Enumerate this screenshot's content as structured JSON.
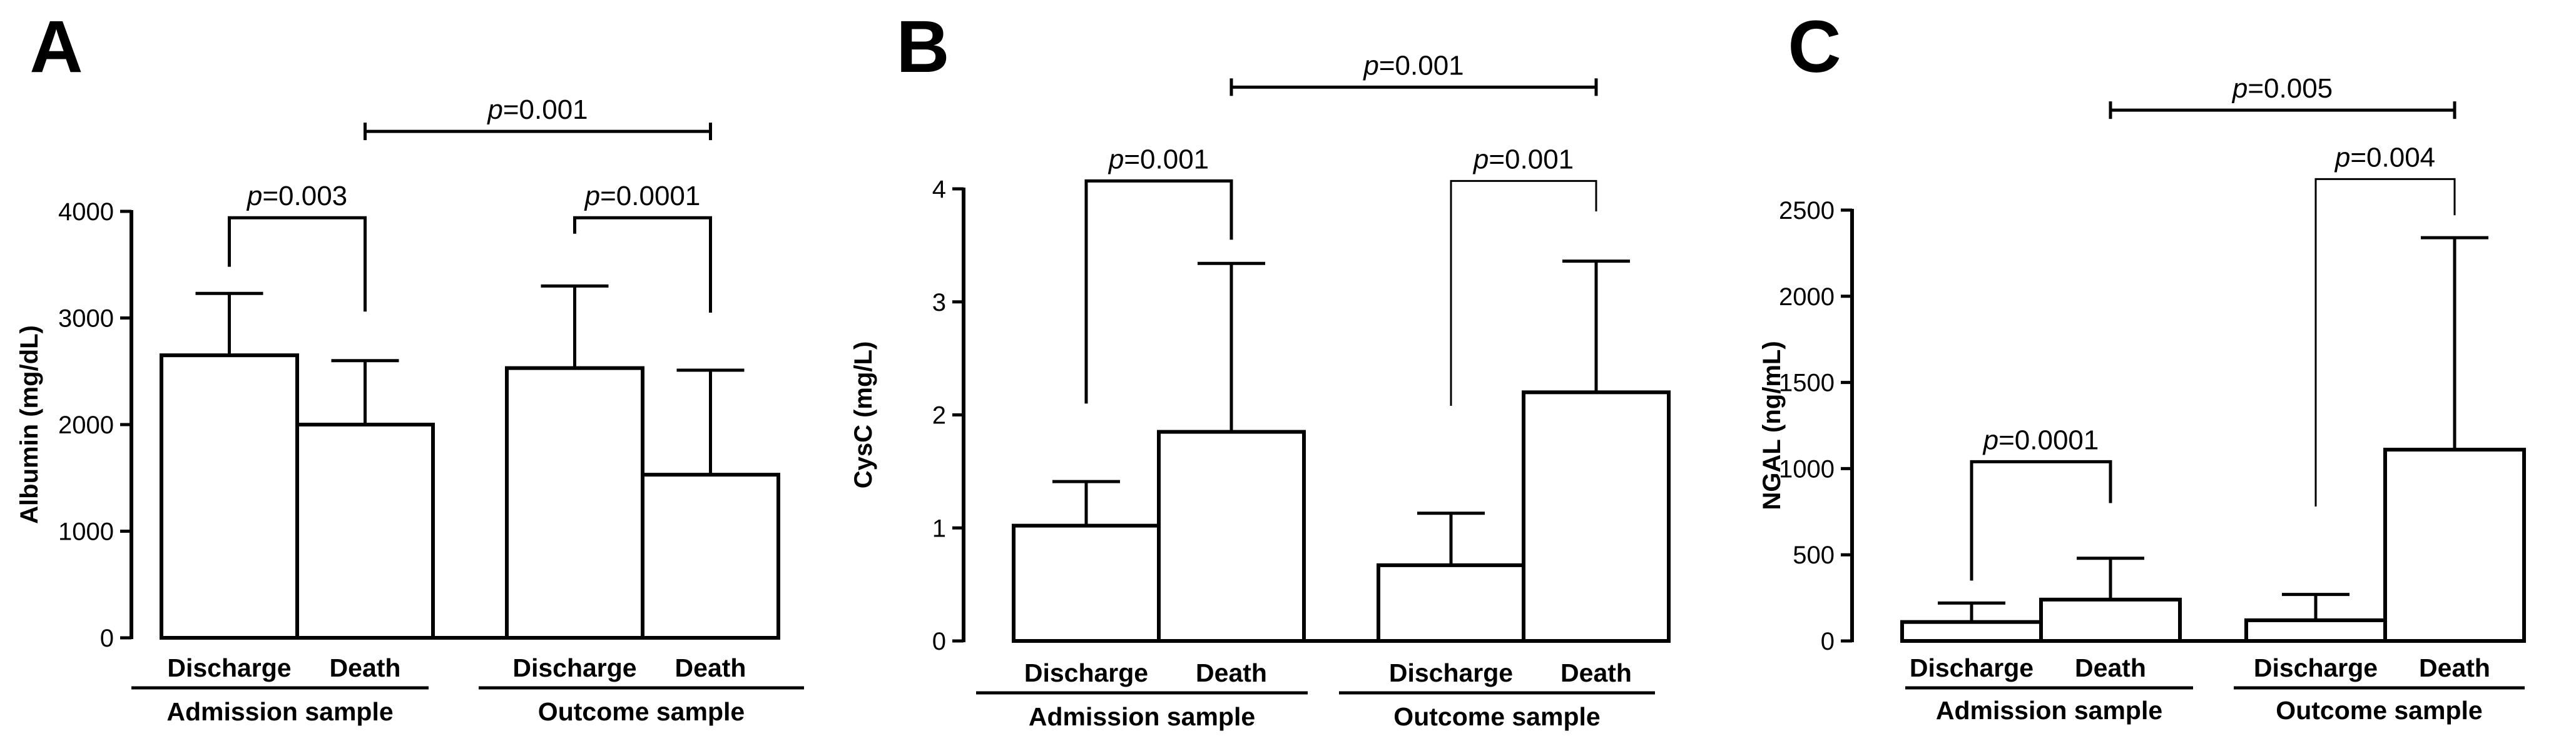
{
  "chart_data": [
    {
      "type": "bar",
      "panel": "A",
      "ylabel": "Albumin (mg/dL)",
      "ylim": [
        0,
        4000
      ],
      "yticks": [
        0,
        1000,
        2000,
        3000,
        4000
      ],
      "ytick_labels": [
        "0",
        "1000",
        "2000",
        "3000",
        "4000"
      ],
      "categories": [
        "Discharge",
        "Death",
        "Discharge",
        "Death"
      ],
      "groups": [
        "Admission sample",
        "Outcome sample"
      ],
      "values": [
        2650,
        2000,
        2530,
        1530
      ],
      "error_upper": [
        3230,
        2600,
        3300,
        2510
      ],
      "comparisons": [
        {
          "from": 0,
          "to": 1,
          "prefix": "p",
          "value": "=0.003",
          "bracket_y": 3940,
          "left_y": 3480,
          "right_y": 3060,
          "thick": true
        },
        {
          "from": 2,
          "to": 3,
          "prefix": "p",
          "value": "=0.0001",
          "bracket_y": 3940,
          "left_y": 3790,
          "right_y": 3050,
          "thick": true
        },
        {
          "from": 1,
          "to": 3,
          "prefix": "p",
          "value": "=0.001",
          "bracket_y": 4750,
          "cap_down": true,
          "thick": true
        }
      ]
    },
    {
      "type": "bar",
      "panel": "B",
      "ylabel": "CysC (mg/L)",
      "ylim": [
        0,
        4
      ],
      "yticks": [
        0,
        1,
        2,
        3,
        4
      ],
      "ytick_labels": [
        "0",
        "1",
        "2",
        "3",
        "4"
      ],
      "categories": [
        "Discharge",
        "Death",
        "Discharge",
        "Death"
      ],
      "groups": [
        "Admission sample",
        "Outcome sample"
      ],
      "values": [
        1.02,
        1.85,
        0.67,
        2.2
      ],
      "error_upper": [
        1.41,
        3.34,
        1.13,
        3.36
      ],
      "comparisons": [
        {
          "from": 0,
          "to": 1,
          "prefix": "p",
          "value": "=0.001",
          "bracket_y": 4.07,
          "left_y": 2.1,
          "right_y": 3.55,
          "thick": true
        },
        {
          "from": 2,
          "to": 3,
          "prefix": "p",
          "value": "=0.001",
          "bracket_y": 4.07,
          "left_y": 2.08,
          "right_y": 3.8,
          "thick": false
        },
        {
          "from": 1,
          "to": 3,
          "prefix": "p",
          "value": "=0.001",
          "bracket_y": 4.9,
          "cap_down": true,
          "thick": true
        }
      ]
    },
    {
      "type": "bar",
      "panel": "C",
      "ylabel": "NGAL (ng/mL)",
      "ylim": [
        0,
        2500
      ],
      "yticks": [
        0,
        500,
        1000,
        1500,
        2000,
        2500
      ],
      "ytick_labels": [
        "0",
        "500",
        "1000",
        "1500",
        "2000",
        "2500"
      ],
      "categories": [
        "Discharge",
        "Death",
        "Discharge",
        "Death"
      ],
      "groups": [
        "Admission sample",
        "Outcome sample"
      ],
      "values": [
        110,
        240,
        120,
        1110
      ],
      "error_upper": [
        220,
        480,
        270,
        2340
      ],
      "comparisons": [
        {
          "from": 0,
          "to": 1,
          "prefix": "p",
          "value": "=0.0001",
          "bracket_y": 1040,
          "left_y": 350,
          "right_y": 800,
          "thick": true
        },
        {
          "from": 2,
          "to": 3,
          "prefix": "p",
          "value": "=0.004",
          "bracket_y": 2680,
          "left_y": 780,
          "right_y": 2470,
          "thick": false
        },
        {
          "from": 1,
          "to": 3,
          "prefix": "p",
          "value": "=0.005",
          "bracket_y": 3080,
          "cap_down": true,
          "thick": true
        }
      ]
    }
  ]
}
